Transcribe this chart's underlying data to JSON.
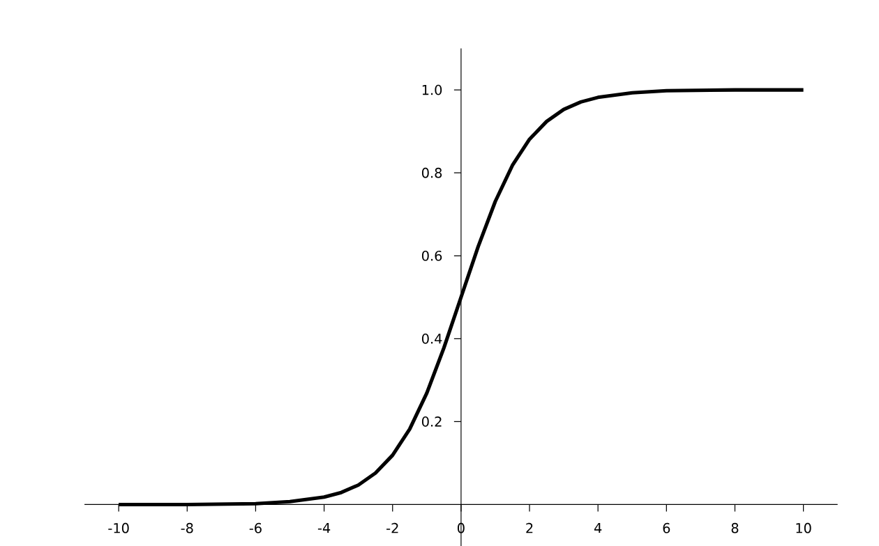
{
  "chart_data": {
    "type": "line",
    "x": [
      -10,
      -8,
      -6,
      -5,
      -4,
      -3.5,
      -3,
      -2.5,
      -2,
      -1.5,
      -1,
      -0.5,
      0,
      0.5,
      1,
      1.5,
      2,
      2.5,
      3,
      3.5,
      4,
      5,
      6,
      8,
      10
    ],
    "series": [
      {
        "color": "#000000",
        "values": [
          0,
          0,
          0.002,
          0.007,
          0.018,
          0.029,
          0.047,
          0.076,
          0.119,
          0.182,
          0.269,
          0.378,
          0.5,
          0.622,
          0.731,
          0.818,
          0.881,
          0.924,
          0.953,
          0.971,
          0.982,
          0.993,
          0.998,
          1,
          1
        ]
      }
    ],
    "xlim": [
      -11,
      11
    ],
    "ylim": [
      -0.1,
      1.1
    ],
    "xticks": [
      -10,
      -8,
      -6,
      -4,
      -2,
      0,
      2,
      4,
      6,
      8,
      10
    ],
    "yticks": [
      0.2,
      0.4,
      0.6,
      0.8,
      {
        "value": 1,
        "label": "1.0"
      }
    ],
    "marker": "none"
  }
}
